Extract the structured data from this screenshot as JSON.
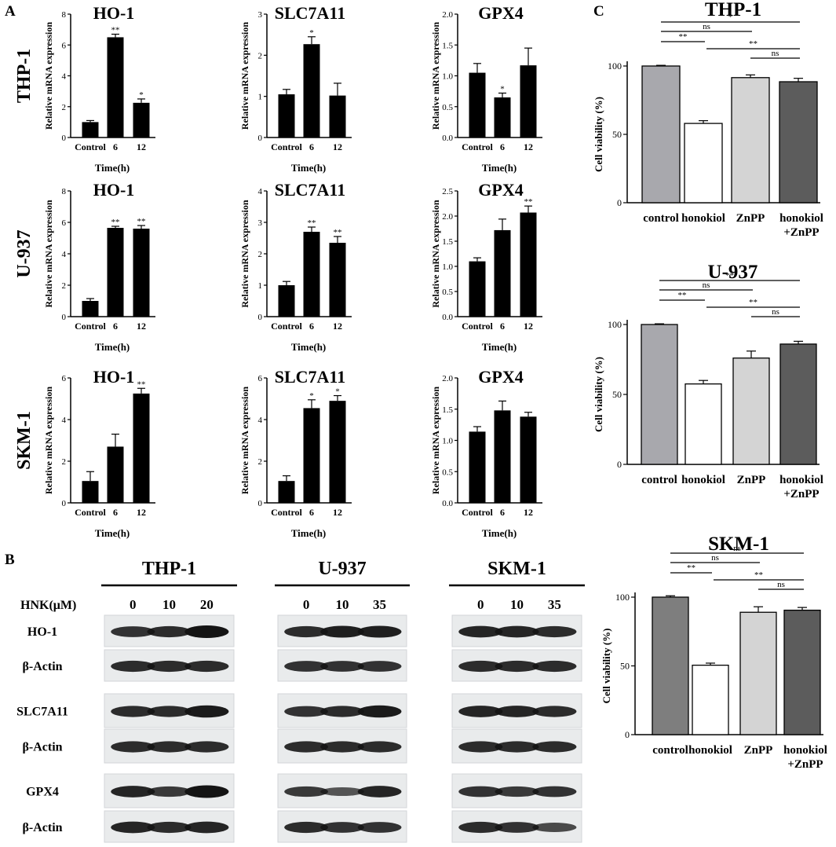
{
  "panel_letters": [
    "A",
    "B",
    "C"
  ],
  "colors": {
    "bar_black": "#000000",
    "control_light": "#a8a8ad",
    "control_dark": "#7e7e7e",
    "honokiol": "#ffffff",
    "znpp": "#d4d4d4",
    "combo": "#5c5c5c"
  },
  "panelA": {
    "rows": [
      "THP-1",
      "U-937",
      "SKM-1"
    ],
    "ylabel": "Relative mRNA expression",
    "xlabel": "Time(h)",
    "categories": [
      "Control",
      "6",
      "12"
    ]
  },
  "panelB": {
    "hnk_label": "HNK(μM)",
    "cells": [
      {
        "name": "THP-1",
        "doses": [
          "0",
          "10",
          "20"
        ]
      },
      {
        "name": "U-937",
        "doses": [
          "0",
          "10",
          "35"
        ]
      },
      {
        "name": "SKM-1",
        "doses": [
          "0",
          "10",
          "35"
        ]
      }
    ],
    "proteins": [
      "HO-1",
      "β-Actin",
      "SLC7A11",
      "β-Actin",
      "GPX4",
      "β-Actin"
    ],
    "band_intensity": {
      "THP-1": [
        [
          0.75,
          0.8,
          1.0
        ],
        [
          0.8,
          0.8,
          0.8
        ],
        [
          0.8,
          0.8,
          0.95
        ],
        [
          0.8,
          0.8,
          0.8
        ],
        [
          0.85,
          0.7,
          1.0
        ],
        [
          0.85,
          0.8,
          0.85
        ]
      ],
      "U-937": [
        [
          0.8,
          0.9,
          0.9
        ],
        [
          0.75,
          0.75,
          0.75
        ],
        [
          0.75,
          0.8,
          0.95
        ],
        [
          0.8,
          0.8,
          0.8
        ],
        [
          0.7,
          0.45,
          0.85
        ],
        [
          0.8,
          0.75,
          0.75
        ]
      ],
      "SKM-1": [
        [
          0.85,
          0.85,
          0.8
        ],
        [
          0.8,
          0.8,
          0.8
        ],
        [
          0.85,
          0.85,
          0.8
        ],
        [
          0.8,
          0.8,
          0.8
        ],
        [
          0.75,
          0.7,
          0.75
        ],
        [
          0.8,
          0.75,
          0.55
        ]
      ]
    }
  },
  "chart_data": [
    {
      "type": "bar",
      "panel": "A",
      "row": "THP-1",
      "title": "HO-1",
      "xlabel": "Time(h)",
      "ylabel": "Relative mRNA expression",
      "categories": [
        "Control",
        "6",
        "12"
      ],
      "values": [
        1.0,
        6.5,
        2.25
      ],
      "errors": [
        0.1,
        0.2,
        0.25
      ],
      "sig": [
        "",
        "**",
        "*"
      ],
      "ylim": [
        0,
        8
      ],
      "yticks": [
        "0",
        "2",
        "4",
        "6",
        "8"
      ]
    },
    {
      "type": "bar",
      "panel": "A",
      "row": "THP-1",
      "title": "SLC7A11",
      "xlabel": "Time(h)",
      "ylabel": "Relative mRNA expression",
      "categories": [
        "Control",
        "6",
        "12"
      ],
      "values": [
        1.05,
        2.27,
        1.02
      ],
      "errors": [
        0.12,
        0.18,
        0.3
      ],
      "sig": [
        "",
        "*",
        ""
      ],
      "ylim": [
        0,
        3
      ],
      "yticks": [
        "0",
        "1",
        "2",
        "3"
      ]
    },
    {
      "type": "bar",
      "panel": "A",
      "row": "THP-1",
      "title": "GPX4",
      "xlabel": "Time(h)",
      "ylabel": "Relative mRNA expression",
      "categories": [
        "Control",
        "6",
        "12"
      ],
      "values": [
        1.05,
        0.65,
        1.17
      ],
      "errors": [
        0.15,
        0.07,
        0.28
      ],
      "sig": [
        "",
        "*",
        ""
      ],
      "ylim": [
        0,
        2.0
      ],
      "yticks": [
        "0.0",
        "0.5",
        "1.0",
        "1.5",
        "2.0"
      ]
    },
    {
      "type": "bar",
      "panel": "A",
      "row": "U-937",
      "title": "HO-1",
      "xlabel": "Time(h)",
      "ylabel": "Relative mRNA expression",
      "categories": [
        "Control",
        "6",
        "12"
      ],
      "values": [
        1.0,
        5.65,
        5.6
      ],
      "errors": [
        0.15,
        0.1,
        0.2
      ],
      "sig": [
        "",
        "**",
        "**"
      ],
      "ylim": [
        0,
        8
      ],
      "yticks": [
        "0",
        "2",
        "4",
        "6",
        "8"
      ]
    },
    {
      "type": "bar",
      "panel": "A",
      "row": "U-937",
      "title": "SLC7A11",
      "xlabel": "Time(h)",
      "ylabel": "Relative mRNA expression",
      "categories": [
        "Control",
        "6",
        "12"
      ],
      "values": [
        1.0,
        2.7,
        2.35
      ],
      "errors": [
        0.12,
        0.15,
        0.2
      ],
      "sig": [
        "",
        "**",
        "**"
      ],
      "ylim": [
        0,
        4
      ],
      "yticks": [
        "0",
        "1",
        "2",
        "3",
        "4"
      ]
    },
    {
      "type": "bar",
      "panel": "A",
      "row": "U-937",
      "title": "GPX4",
      "xlabel": "Time(h)",
      "ylabel": "Relative mRNA expression",
      "categories": [
        "Control",
        "6",
        "12"
      ],
      "values": [
        1.1,
        1.72,
        2.07
      ],
      "errors": [
        0.07,
        0.22,
        0.13
      ],
      "sig": [
        "",
        "",
        "**"
      ],
      "ylim": [
        0,
        2.5
      ],
      "yticks": [
        "0.0",
        "0.5",
        "1.0",
        "1.5",
        "2.0",
        "2.5"
      ]
    },
    {
      "type": "bar",
      "panel": "A",
      "row": "SKM-1",
      "title": "HO-1",
      "xlabel": "Time(h)",
      "ylabel": "Relative mRNA expression",
      "categories": [
        "Control",
        "6",
        "12"
      ],
      "values": [
        1.05,
        2.7,
        5.25
      ],
      "errors": [
        0.45,
        0.6,
        0.25
      ],
      "sig": [
        "",
        "",
        "**"
      ],
      "ylim": [
        0,
        6
      ],
      "yticks": [
        "0",
        "2",
        "4",
        "6"
      ]
    },
    {
      "type": "bar",
      "panel": "A",
      "row": "SKM-1",
      "title": "SLC7A11",
      "xlabel": "Time(h)",
      "ylabel": "Relative mRNA expression",
      "categories": [
        "Control",
        "6",
        "12"
      ],
      "values": [
        1.05,
        4.55,
        4.9
      ],
      "errors": [
        0.25,
        0.4,
        0.25
      ],
      "sig": [
        "",
        "*",
        "*"
      ],
      "ylim": [
        0,
        6
      ],
      "yticks": [
        "0",
        "2",
        "4",
        "6"
      ]
    },
    {
      "type": "bar",
      "panel": "A",
      "row": "SKM-1",
      "title": "GPX4",
      "xlabel": "Time(h)",
      "ylabel": "Relative mRNA expression",
      "categories": [
        "Control",
        "6",
        "12"
      ],
      "values": [
        1.14,
        1.48,
        1.38
      ],
      "errors": [
        0.08,
        0.15,
        0.07
      ],
      "sig": [
        "",
        "",
        ""
      ],
      "ylim": [
        0,
        2.0
      ],
      "yticks": [
        "0.0",
        "0.5",
        "1.0",
        "1.5",
        "2.0"
      ]
    },
    {
      "type": "bar",
      "panel": "C",
      "title": "THP-1",
      "ylabel": "Cell viability (%)",
      "categories": [
        "control",
        "honokiol",
        "ZnPP",
        "honokiol\n+ZnPP"
      ],
      "values": [
        100,
        58,
        91.5,
        88.5
      ],
      "errors": [
        0.5,
        2,
        2,
        2.5
      ],
      "ylim": [
        0,
        100
      ],
      "yticks": [
        "0",
        "50",
        "100"
      ],
      "brackets": [
        {
          "from": 0,
          "to": 3,
          "label": "*"
        },
        {
          "from": 0,
          "to": 2,
          "label": "ns"
        },
        {
          "from": 0,
          "to": 1,
          "label": "**"
        },
        {
          "from": 1,
          "to": 3,
          "label": "**"
        },
        {
          "from": 2,
          "to": 3,
          "label": "ns"
        }
      ]
    },
    {
      "type": "bar",
      "panel": "C",
      "title": "U-937",
      "ylabel": "Cell viability (%)",
      "categories": [
        "control",
        "honokiol",
        "ZnPP",
        "honokiol\n+ZnPP"
      ],
      "values": [
        100,
        57.5,
        76,
        86
      ],
      "errors": [
        0.5,
        2.5,
        5,
        2
      ],
      "ylim": [
        0,
        100
      ],
      "yticks": [
        "0",
        "50",
        "100"
      ],
      "brackets": [
        {
          "from": 0,
          "to": 3,
          "label": "**"
        },
        {
          "from": 0,
          "to": 2,
          "label": "ns"
        },
        {
          "from": 0,
          "to": 1,
          "label": "**"
        },
        {
          "from": 1,
          "to": 3,
          "label": "**"
        },
        {
          "from": 2,
          "to": 3,
          "label": "ns"
        }
      ]
    },
    {
      "type": "bar",
      "panel": "C",
      "title": "SKM-1",
      "ylabel": "Cell viability (%)",
      "categories": [
        "control",
        "honokiol",
        "ZnPP",
        "honokiol\n+ZnPP"
      ],
      "values": [
        100,
        50.5,
        89,
        90.5
      ],
      "errors": [
        1,
        1.5,
        4,
        2
      ],
      "ylim": [
        0,
        100
      ],
      "yticks": [
        "0",
        "50",
        "100"
      ],
      "brackets": [
        {
          "from": 0,
          "to": 3,
          "label": "ns"
        },
        {
          "from": 0,
          "to": 2,
          "label": "ns"
        },
        {
          "from": 0,
          "to": 1,
          "label": "**"
        },
        {
          "from": 1,
          "to": 3,
          "label": "**"
        },
        {
          "from": 2,
          "to": 3,
          "label": "ns"
        }
      ]
    }
  ]
}
